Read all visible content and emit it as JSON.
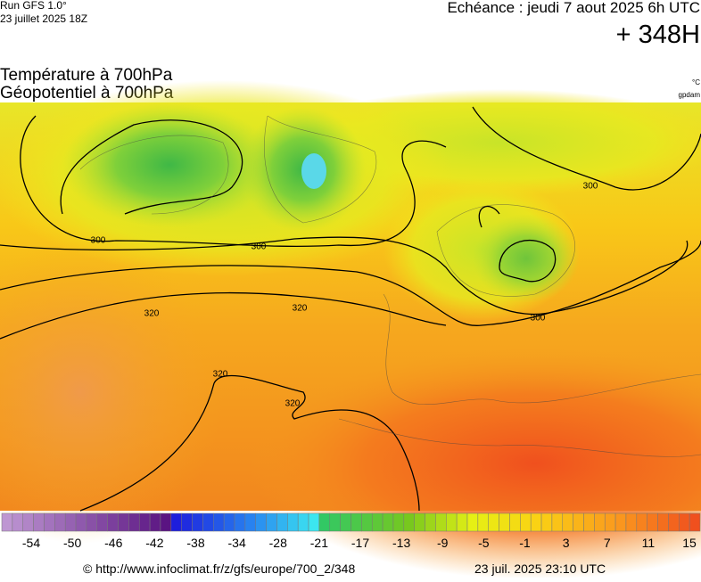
{
  "header": {
    "run": "Run GFS 1.0°",
    "run_date": "23 juillet 2025 18Z",
    "valid": "Echéance : jeudi 7 aout 2025 6h UTC",
    "lead": "+ 348H",
    "title_1": "Température à 700hPa",
    "title_2": "Géopotentiel à 700hPa",
    "unit_1": "°C",
    "unit_2": "gpdam"
  },
  "map": {
    "contour_labels": [
      "300",
      "300",
      "300",
      "300",
      "320",
      "320",
      "320",
      "320"
    ]
  },
  "colorbar": {
    "labels": [
      -54,
      -50,
      -46,
      -42,
      -38,
      -34,
      -28,
      -21,
      -17,
      -13,
      -9,
      -5,
      -1,
      3,
      7,
      11,
      15
    ]
  },
  "footer": {
    "source": "© http://www.infoclimat.fr/z/gfs/europe/700_2/348",
    "generated": "23 juil. 2025 23:10 UTC"
  }
}
